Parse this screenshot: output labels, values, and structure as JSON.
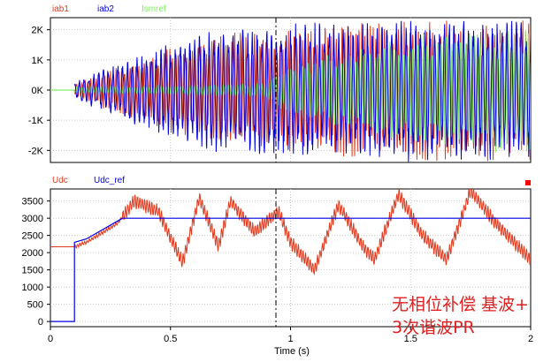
{
  "chart_data": [
    {
      "type": "line",
      "panel": "top",
      "ylim": [
        -2400,
        2400
      ],
      "yticks": [
        -2000,
        -1000,
        0,
        1000,
        2000
      ],
      "ytick_labels": [
        "-2K",
        "-1K",
        "0K",
        "1K",
        "2K"
      ],
      "xlim": [
        0,
        2
      ],
      "grid": true,
      "series": [
        {
          "name": "iab1",
          "color": "#e03a1e",
          "x_start": 0.1,
          "envelope": [
            [
              0.1,
              200
            ],
            [
              0.3,
              900
            ],
            [
              0.5,
              1500
            ],
            [
              0.7,
              1900
            ],
            [
              0.9,
              2000
            ],
            [
              1.1,
              2200
            ],
            [
              1.5,
              2400
            ],
            [
              2.0,
              2400
            ]
          ]
        },
        {
          "name": "iab2",
          "color": "#0000e6",
          "x_start": 0.1,
          "envelope": [
            [
              0.1,
              300
            ],
            [
              0.3,
              1000
            ],
            [
              0.5,
              1600
            ],
            [
              0.7,
              2100
            ],
            [
              0.9,
              2200
            ],
            [
              1.1,
              2300
            ],
            [
              1.5,
              2400
            ],
            [
              2.0,
              2400
            ]
          ]
        },
        {
          "name": "Ismref",
          "color": "#80ee60",
          "x_start": 0.1,
          "envelope": [
            [
              0.1,
              100
            ],
            [
              0.5,
              150
            ],
            [
              0.9,
              250
            ],
            [
              1.0,
              900
            ],
            [
              1.5,
              1800
            ],
            [
              2.0,
              2200
            ]
          ]
        }
      ]
    },
    {
      "type": "line",
      "panel": "bottom",
      "ylim": [
        -150,
        3850
      ],
      "yticks": [
        0,
        500,
        1000,
        1500,
        2000,
        2500,
        3000,
        3500
      ],
      "ytick_labels": [
        "0",
        "500",
        "1000",
        "1500",
        "2000",
        "2500",
        "3000",
        "3500"
      ],
      "xlim": [
        0,
        2
      ],
      "xticks": [
        0,
        0.5,
        1,
        1.5,
        2
      ],
      "xtick_labels": [
        "0",
        "0.5",
        "1",
        "1.5",
        "2"
      ],
      "xlabel": "Time (s)",
      "grid": true,
      "series": [
        {
          "name": "Udc",
          "color": "#e03a1e",
          "points": [
            [
              0,
              2170
            ],
            [
              0.1,
              2170
            ],
            [
              0.15,
              2300
            ],
            [
              0.28,
              2850
            ],
            [
              0.35,
              3500
            ],
            [
              0.45,
              3200
            ],
            [
              0.55,
              1700
            ],
            [
              0.62,
              3600
            ],
            [
              0.7,
              2200
            ],
            [
              0.75,
              3500
            ],
            [
              0.85,
              2600
            ],
            [
              0.95,
              3200
            ],
            [
              1.0,
              2300
            ],
            [
              1.1,
              1500
            ],
            [
              1.2,
              3400
            ],
            [
              1.3,
              2200
            ],
            [
              1.35,
              1800
            ],
            [
              1.45,
              3700
            ],
            [
              1.55,
              2500
            ],
            [
              1.65,
              1800
            ],
            [
              1.75,
              3800
            ],
            [
              1.85,
              2900
            ],
            [
              2.0,
              1800
            ]
          ]
        },
        {
          "name": "Udc_ref",
          "color": "#0000e6",
          "points": [
            [
              0,
              0
            ],
            [
              0.1,
              0
            ],
            [
              0.1,
              2300
            ],
            [
              0.15,
              2400
            ],
            [
              0.3,
              3000
            ],
            [
              2.0,
              3000
            ]
          ]
        }
      ]
    }
  ],
  "annotation": {
    "line1": "无相位补偿 基波+",
    "line2": "3次谐波PR"
  },
  "colors": {
    "red": "#e03a1e",
    "blue": "#0000e6",
    "green": "#80ee60",
    "grid": "#c8c8c8",
    "marker": "#ff0000"
  }
}
